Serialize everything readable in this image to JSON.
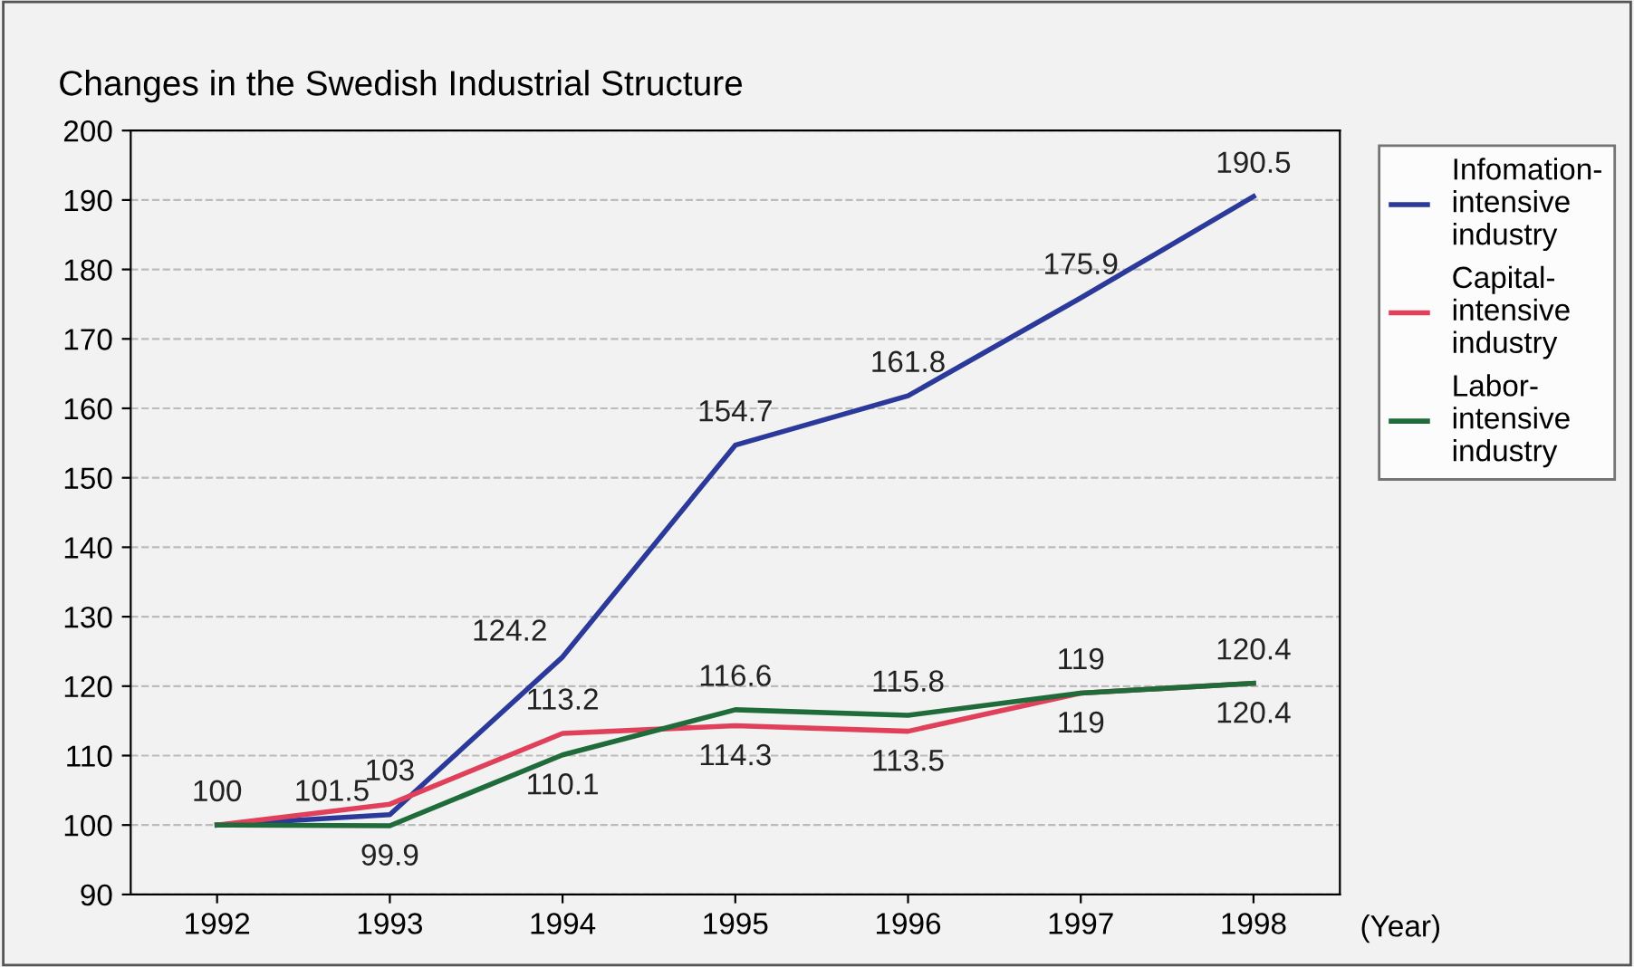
{
  "chart_data": {
    "type": "line",
    "title": "Changes in the Swedish Industrial Structure",
    "xlabel": "(Year)",
    "categories": [
      "1992",
      "1993",
      "1994",
      "1995",
      "1996",
      "1997",
      "1998"
    ],
    "series": [
      {
        "name": "Infomation-\nintensive\nindustry",
        "color": "#2b3a9a",
        "values": [
          100,
          101.5,
          124.2,
          154.7,
          161.8,
          175.9,
          190.5
        ],
        "value_labels": [
          "100",
          "101.5",
          "124.2",
          "154.7",
          "161.8",
          "175.9",
          "190.5"
        ]
      },
      {
        "name": "Capital-\nintensive\nindustry",
        "color": "#e0405a",
        "values": [
          100,
          103,
          113.2,
          114.3,
          113.5,
          119,
          120.4
        ],
        "value_labels": [
          null,
          "103",
          "113.2",
          "114.3",
          "113.5",
          "119",
          "120.4"
        ]
      },
      {
        "name": "Labor-\nintensive\nindustry",
        "color": "#1f6b3a",
        "values": [
          100,
          99.9,
          110.1,
          116.6,
          115.8,
          119,
          120.4
        ],
        "value_labels": [
          null,
          "99.9",
          "110.1",
          "116.6",
          "115.8",
          "119",
          "120.4"
        ]
      }
    ],
    "ylim": [
      90,
      200
    ],
    "yticks": [
      90,
      100,
      110,
      120,
      130,
      140,
      150,
      160,
      170,
      180,
      190,
      200
    ],
    "grid": "y",
    "legend": "right",
    "marker": "none",
    "line_style": "solid"
  }
}
